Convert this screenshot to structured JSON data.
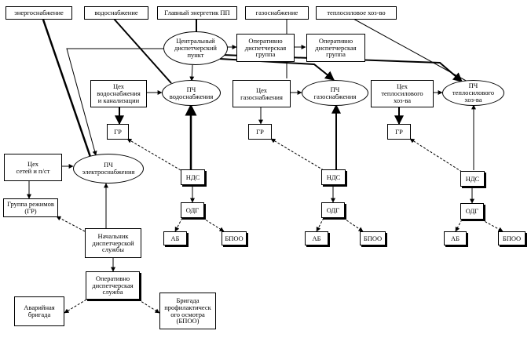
{
  "nodes": {
    "energosnab": "энергоснабжение",
    "vodosnab": "водоснабжение",
    "glavenerg": "Главный энергетик ПП",
    "gazosnab": "газоснабжение",
    "teplo": "теплосиловое хоз-во",
    "cdp": "Центральный\nдиспетчерский\nпункт",
    "og1": "Оперативно\nдиспетчерская\nгруппа",
    "og2": "Оперативно\nдиспетчерская\nгруппа",
    "tsekh_vod": "Цех\nводоснабжения\nи канализации",
    "pch_vod": "ПЧ\nводоснабжения",
    "tsekh_gaz": "Цех\nгазоснабжения",
    "pch_gaz": "ПЧ\nгазоснабжения",
    "tsekh_tep": "Цех\nтеплосилового\nхоз-ва",
    "pch_tep": "ПЧ\nтеплосилового\nхоз-ва",
    "gr1": "ГР",
    "gr2": "ГР",
    "gr3": "ГР",
    "tsekh_set": "Цех\nсетей и п/ст",
    "pch_el": "ПЧ\nэлектроснабжения",
    "gr_rezh": "Группа режимов\n(ГР)",
    "nds1": "НДС",
    "nds2": "НДС",
    "nds3": "НДС",
    "odg1": "ОДГ",
    "odg2": "ОДГ",
    "odg3": "ОДГ",
    "ab1": "АБ",
    "ab2": "АБ",
    "ab3": "АБ",
    "bpoo1": "БПОО",
    "bpoo2": "БПОО",
    "bpoo3": "БПОО",
    "nach": "Начальник\nдиспетчерской\nслужбы",
    "ods": "Оперативно\nдиспетчерская\nслужба",
    "avar": "Аварийная\nбригада",
    "brig": "Бригада\nпрофилактическ\nого осмотра\n(БПОО)"
  }
}
